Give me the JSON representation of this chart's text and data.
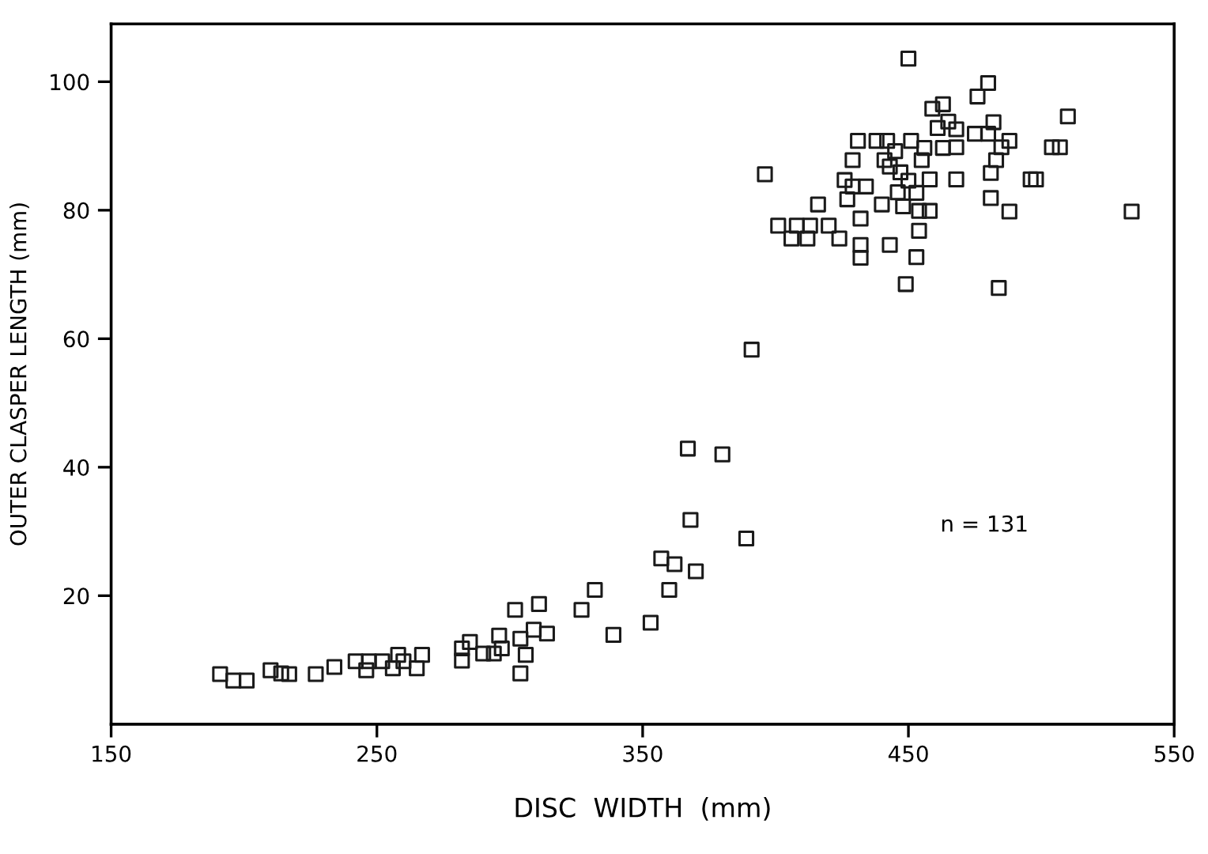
{
  "chart_data": {
    "type": "scatter",
    "xlabel": "DISC  WIDTH  (mm)",
    "ylabel": "OUTER CLASPER LENGTH (mm)",
    "annotations": [
      "n = 131"
    ],
    "x": [
      191,
      196,
      201,
      210,
      214,
      217,
      227,
      234,
      242,
      246,
      247,
      252,
      256,
      258,
      260,
      265,
      267,
      282,
      282,
      285,
      290,
      294,
      296,
      297,
      302,
      304,
      304,
      306,
      309,
      311,
      314,
      327,
      332,
      339,
      353,
      357,
      360,
      362,
      367,
      368,
      370,
      380,
      389,
      391,
      396,
      401,
      406,
      408,
      412,
      413,
      416,
      420,
      424,
      426,
      427,
      429,
      429,
      431,
      432,
      432,
      432,
      434,
      438,
      440,
      442,
      443,
      441,
      443,
      445,
      446,
      447,
      448,
      449,
      450,
      451,
      450,
      453,
      454,
      453,
      455,
      456,
      454,
      458,
      458,
      459,
      461,
      463,
      463,
      465,
      468,
      468,
      468,
      476,
      475,
      480,
      480,
      482,
      481,
      481,
      483,
      484,
      485,
      488,
      488,
      496,
      498,
      504,
      507,
      510,
      534
    ],
    "values": [
      7.8,
      6.8,
      6.8,
      8.4,
      7.9,
      7.8,
      7.8,
      8.9,
      9.8,
      8.4,
      9.8,
      9.8,
      8.7,
      10.8,
      9.8,
      8.7,
      10.8,
      9.9,
      11.8,
      12.8,
      11,
      11,
      13.8,
      11.8,
      17.8,
      13.3,
      7.9,
      10.8,
      14.7,
      18.7,
      14.1,
      17.8,
      20.9,
      13.9,
      15.8,
      25.8,
      20.9,
      24.9,
      42.9,
      31.8,
      23.8,
      42,
      28.9,
      58.3,
      85.6,
      77.6,
      75.6,
      77.6,
      75.6,
      77.6,
      80.9,
      77.6,
      75.6,
      84.7,
      81.7,
      87.8,
      83.7,
      90.8,
      74.6,
      72.6,
      78.7,
      83.7,
      90.8,
      80.9,
      90.8,
      74.6,
      87.8,
      86.8,
      89.2,
      82.8,
      85.9,
      80.6,
      68.5,
      103.6,
      90.8,
      84.6,
      82.7,
      79.9,
      72.7,
      87.8,
      89.7,
      76.8,
      84.8,
      79.9,
      95.8,
      92.8,
      89.7,
      96.5,
      93.8,
      92.6,
      89.8,
      84.8,
      97.7,
      91.9,
      91.9,
      99.8,
      93.7,
      81.9,
      85.8,
      87.8,
      67.9,
      89.8,
      90.8,
      79.8,
      84.8,
      84.8,
      89.8,
      89.8,
      94.6,
      79.8
    ],
    "color": "#1a1a1a",
    "marker": "square",
    "xlim": [
      150,
      550
    ],
    "ylim": [
      0,
      109
    ],
    "xticks": [
      150,
      250,
      350,
      450,
      550
    ],
    "yticks": [
      20,
      40,
      60,
      80,
      100
    ],
    "grid": false,
    "legend": false
  }
}
